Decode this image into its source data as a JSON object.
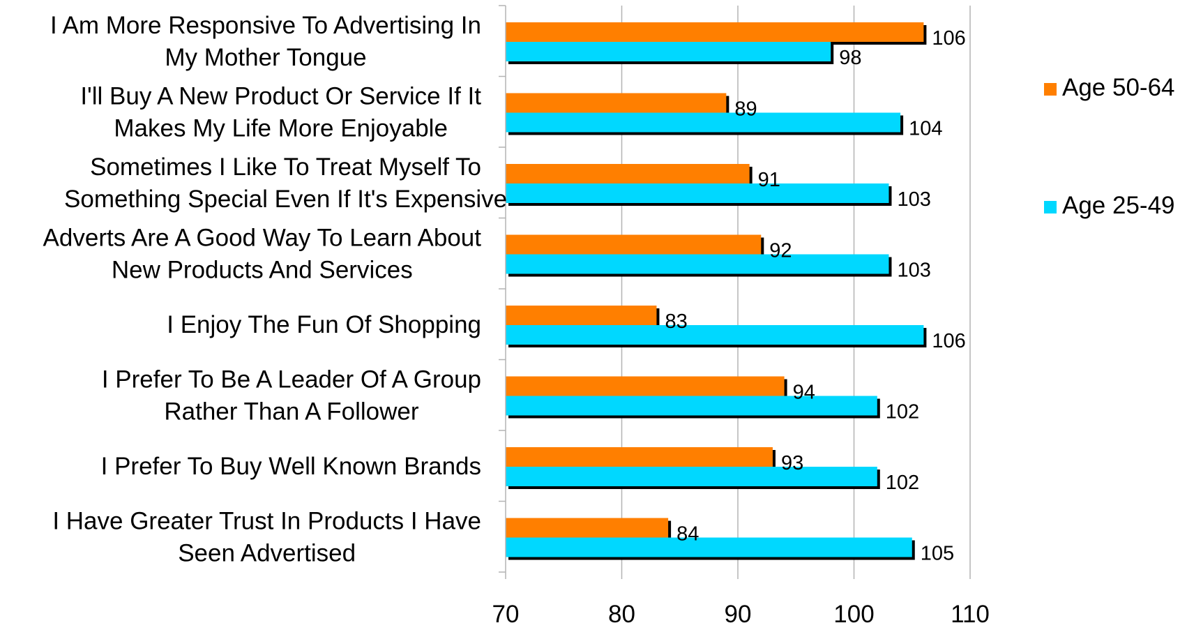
{
  "chart_data": {
    "type": "bar",
    "orientation": "horizontal",
    "categories": [
      [
        "I Am More Responsive To Advertising In",
        "My Mother Tongue"
      ],
      [
        "I'll Buy A New Product Or Service If It",
        "Makes My Life More Enjoyable"
      ],
      [
        "Sometimes I Like To Treat Myself To",
        "Something Special Even If It's Expensive"
      ],
      [
        "Adverts Are A Good Way To Learn About",
        "New Products And Services"
      ],
      [
        "I Enjoy The Fun Of Shopping"
      ],
      [
        "I Prefer To Be A Leader Of A Group",
        "Rather Than A Follower"
      ],
      [
        "I Prefer To Buy Well Known Brands"
      ],
      [
        "I Have Greater Trust In Products I Have",
        "Seen Advertised"
      ]
    ],
    "series": [
      {
        "name": "Age 50-64",
        "color": "#FF7F00",
        "values": [
          106,
          89,
          91,
          92,
          83,
          94,
          93,
          84
        ]
      },
      {
        "name": "Age 25-49",
        "color": "#00D8FF",
        "values": [
          98,
          104,
          103,
          103,
          106,
          102,
          102,
          105
        ]
      }
    ],
    "xlim": [
      70,
      110
    ],
    "xticks": [
      70,
      80,
      90,
      100,
      110
    ],
    "grid": "vertical",
    "legend_position": "right",
    "title": "",
    "xlabel": "",
    "ylabel": ""
  }
}
